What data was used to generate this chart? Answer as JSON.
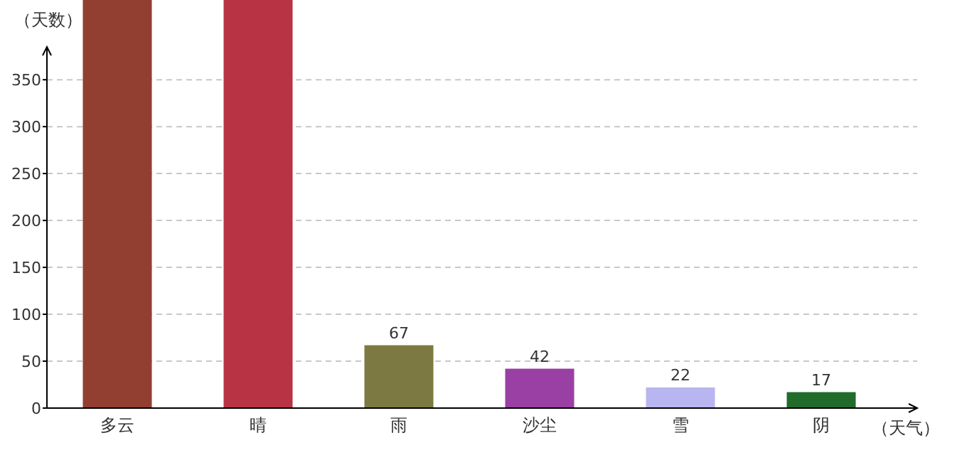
{
  "chart_data": {
    "type": "bar",
    "xlabel": "（天气）",
    "ylabel": "（天数）",
    "categories": [
      "多云",
      "晴",
      "雨",
      "沙尘",
      "雪",
      "阴"
    ],
    "values": [
      435,
      435,
      67,
      42,
      22,
      17
    ],
    "colors": [
      "#923f31",
      "#b83343",
      "#7c7a42",
      "#9a40a4",
      "#b9b5f0",
      "#216c2b"
    ],
    "value_labels": [
      null,
      null,
      "67",
      "42",
      "22",
      "17"
    ],
    "ylim": [
      0,
      435
    ],
    "yticks": [
      0,
      50,
      100,
      150,
      200,
      250,
      300,
      350
    ],
    "grid": "y"
  }
}
